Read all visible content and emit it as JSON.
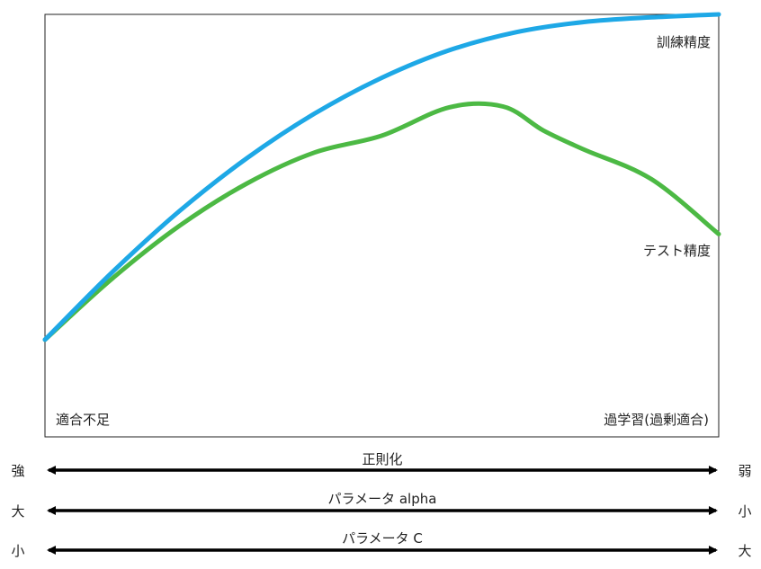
{
  "chart_data": {
    "type": "line",
    "series": [
      {
        "name": "訓練精度",
        "color": "#1ea8e6",
        "points": [
          [
            0,
            0.23
          ],
          [
            0.1,
            0.39
          ],
          [
            0.2,
            0.535
          ],
          [
            0.3,
            0.66
          ],
          [
            0.4,
            0.765
          ],
          [
            0.5,
            0.85
          ],
          [
            0.6,
            0.915
          ],
          [
            0.7,
            0.958
          ],
          [
            0.8,
            0.982
          ],
          [
            0.9,
            0.993
          ],
          [
            1,
            1.0
          ]
        ]
      },
      {
        "name": "テスト精度",
        "color": "#4cb944",
        "points": [
          [
            0,
            0.23
          ],
          [
            0.1,
            0.375
          ],
          [
            0.2,
            0.5
          ],
          [
            0.3,
            0.6
          ],
          [
            0.4,
            0.673
          ],
          [
            0.5,
            0.713
          ],
          [
            0.6,
            0.78
          ],
          [
            0.68,
            0.782
          ],
          [
            0.74,
            0.725
          ],
          [
            0.8,
            0.68
          ],
          [
            0.9,
            0.61
          ],
          [
            1,
            0.48
          ]
        ]
      }
    ]
  },
  "annotations": {
    "bottom_left": "適合不足",
    "bottom_right": "過学習(過剰適合)"
  },
  "scales": [
    {
      "title": "正則化",
      "left": "強",
      "right": "弱"
    },
    {
      "title": "パラメータ alpha",
      "left": "大",
      "right": "小"
    },
    {
      "title": "パラメータ C",
      "left": "小",
      "right": "大"
    }
  ],
  "colors": {
    "frame": "#222222",
    "arrow": "#000000"
  }
}
